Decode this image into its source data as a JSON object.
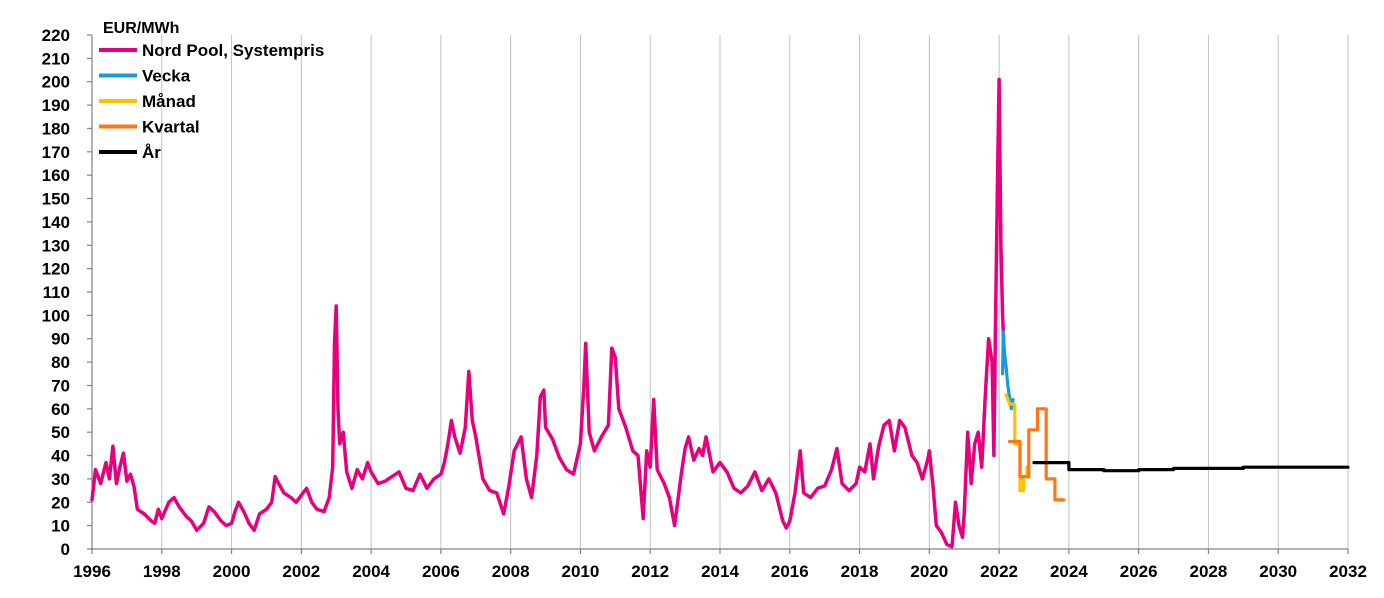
{
  "chart_data": {
    "type": "line",
    "title": "",
    "ylabel": "EUR/MWh",
    "xlabel": "",
    "xlim": [
      1996,
      2032
    ],
    "ylim": [
      0,
      220
    ],
    "x_ticks": [
      "1996",
      "1998",
      "2000",
      "2002",
      "2004",
      "2006",
      "2008",
      "2010",
      "2012",
      "2014",
      "2016",
      "2018",
      "2020",
      "2022",
      "2024",
      "2026",
      "2028",
      "2030",
      "2032"
    ],
    "y_ticks": [
      "0",
      "10",
      "20",
      "30",
      "40",
      "50",
      "60",
      "70",
      "80",
      "90",
      "100",
      "110",
      "120",
      "130",
      "140",
      "150",
      "160",
      "170",
      "180",
      "190",
      "200",
      "210",
      "220"
    ],
    "grid": "vertical",
    "legend_position": "top-left",
    "series": [
      {
        "name": "Nord Pool, Systempris",
        "color": "#e6007e",
        "points": [
          [
            1996.0,
            21
          ],
          [
            1996.1,
            34
          ],
          [
            1996.25,
            28
          ],
          [
            1996.4,
            37
          ],
          [
            1996.5,
            30
          ],
          [
            1996.6,
            44
          ],
          [
            1996.7,
            28
          ],
          [
            1996.8,
            35
          ],
          [
            1996.9,
            41
          ],
          [
            1997.0,
            29
          ],
          [
            1997.1,
            32
          ],
          [
            1997.2,
            27
          ],
          [
            1997.3,
            17
          ],
          [
            1997.5,
            15
          ],
          [
            1997.7,
            12
          ],
          [
            1997.8,
            11
          ],
          [
            1997.9,
            17
          ],
          [
            1998.0,
            13
          ],
          [
            1998.2,
            20
          ],
          [
            1998.35,
            22
          ],
          [
            1998.5,
            18
          ],
          [
            1998.7,
            14
          ],
          [
            1998.85,
            12
          ],
          [
            1999.0,
            8
          ],
          [
            1999.2,
            11
          ],
          [
            1999.35,
            18
          ],
          [
            1999.5,
            16
          ],
          [
            1999.7,
            12
          ],
          [
            1999.85,
            10
          ],
          [
            2000.0,
            11
          ],
          [
            2000.1,
            16
          ],
          [
            2000.2,
            20
          ],
          [
            2000.35,
            16
          ],
          [
            2000.5,
            11
          ],
          [
            2000.65,
            8
          ],
          [
            2000.8,
            15
          ],
          [
            2001.0,
            17
          ],
          [
            2001.15,
            20
          ],
          [
            2001.25,
            31
          ],
          [
            2001.35,
            28
          ],
          [
            2001.5,
            24
          ],
          [
            2001.7,
            22
          ],
          [
            2001.85,
            20
          ],
          [
            2002.0,
            23
          ],
          [
            2002.15,
            26
          ],
          [
            2002.3,
            20
          ],
          [
            2002.45,
            17
          ],
          [
            2002.65,
            16
          ],
          [
            2002.8,
            22
          ],
          [
            2002.9,
            35
          ],
          [
            2002.95,
            88
          ],
          [
            2003.0,
            104
          ],
          [
            2003.05,
            60
          ],
          [
            2003.1,
            45
          ],
          [
            2003.2,
            50
          ],
          [
            2003.3,
            33
          ],
          [
            2003.45,
            26
          ],
          [
            2003.6,
            34
          ],
          [
            2003.75,
            30
          ],
          [
            2003.9,
            37
          ],
          [
            2004.0,
            33
          ],
          [
            2004.2,
            28
          ],
          [
            2004.4,
            29
          ],
          [
            2004.6,
            31
          ],
          [
            2004.8,
            33
          ],
          [
            2005.0,
            26
          ],
          [
            2005.2,
            25
          ],
          [
            2005.4,
            32
          ],
          [
            2005.6,
            26
          ],
          [
            2005.8,
            30
          ],
          [
            2006.0,
            32
          ],
          [
            2006.1,
            37
          ],
          [
            2006.2,
            45
          ],
          [
            2006.3,
            55
          ],
          [
            2006.4,
            48
          ],
          [
            2006.55,
            41
          ],
          [
            2006.7,
            52
          ],
          [
            2006.8,
            76
          ],
          [
            2006.9,
            55
          ],
          [
            2007.0,
            48
          ],
          [
            2007.2,
            30
          ],
          [
            2007.4,
            25
          ],
          [
            2007.6,
            24
          ],
          [
            2007.8,
            15
          ],
          [
            2007.95,
            27
          ],
          [
            2008.1,
            42
          ],
          [
            2008.3,
            48
          ],
          [
            2008.45,
            30
          ],
          [
            2008.6,
            22
          ],
          [
            2008.75,
            40
          ],
          [
            2008.85,
            65
          ],
          [
            2008.95,
            68
          ],
          [
            2009.0,
            52
          ],
          [
            2009.2,
            47
          ],
          [
            2009.4,
            39
          ],
          [
            2009.6,
            34
          ],
          [
            2009.8,
            32
          ],
          [
            2010.0,
            45
          ],
          [
            2010.1,
            70
          ],
          [
            2010.15,
            88
          ],
          [
            2010.25,
            50
          ],
          [
            2010.4,
            42
          ],
          [
            2010.6,
            48
          ],
          [
            2010.8,
            53
          ],
          [
            2010.9,
            86
          ],
          [
            2011.0,
            82
          ],
          [
            2011.1,
            60
          ],
          [
            2011.3,
            52
          ],
          [
            2011.5,
            42
          ],
          [
            2011.65,
            40
          ],
          [
            2011.8,
            13
          ],
          [
            2011.9,
            42
          ],
          [
            2012.0,
            35
          ],
          [
            2012.1,
            64
          ],
          [
            2012.2,
            34
          ],
          [
            2012.4,
            28
          ],
          [
            2012.55,
            22
          ],
          [
            2012.7,
            10
          ],
          [
            2012.9,
            33
          ],
          [
            2013.0,
            43
          ],
          [
            2013.1,
            48
          ],
          [
            2013.25,
            38
          ],
          [
            2013.4,
            43
          ],
          [
            2013.5,
            40
          ],
          [
            2013.6,
            48
          ],
          [
            2013.8,
            33
          ],
          [
            2014.0,
            37
          ],
          [
            2014.2,
            33
          ],
          [
            2014.4,
            26
          ],
          [
            2014.6,
            24
          ],
          [
            2014.8,
            27
          ],
          [
            2015.0,
            33
          ],
          [
            2015.2,
            25
          ],
          [
            2015.4,
            30
          ],
          [
            2015.6,
            24
          ],
          [
            2015.8,
            12
          ],
          [
            2015.9,
            9
          ],
          [
            2016.0,
            12
          ],
          [
            2016.15,
            24
          ],
          [
            2016.3,
            42
          ],
          [
            2016.4,
            24
          ],
          [
            2016.6,
            22
          ],
          [
            2016.8,
            26
          ],
          [
            2017.0,
            27
          ],
          [
            2017.2,
            34
          ],
          [
            2017.35,
            43
          ],
          [
            2017.5,
            28
          ],
          [
            2017.7,
            25
          ],
          [
            2017.9,
            28
          ],
          [
            2018.0,
            35
          ],
          [
            2018.15,
            33
          ],
          [
            2018.3,
            45
          ],
          [
            2018.4,
            30
          ],
          [
            2018.55,
            44
          ],
          [
            2018.7,
            53
          ],
          [
            2018.85,
            55
          ],
          [
            2019.0,
            42
          ],
          [
            2019.15,
            55
          ],
          [
            2019.3,
            52
          ],
          [
            2019.5,
            40
          ],
          [
            2019.65,
            37
          ],
          [
            2019.8,
            30
          ],
          [
            2019.95,
            38
          ],
          [
            2020.0,
            42
          ],
          [
            2020.1,
            28
          ],
          [
            2020.2,
            10
          ],
          [
            2020.35,
            7
          ],
          [
            2020.5,
            2
          ],
          [
            2020.65,
            1
          ],
          [
            2020.75,
            20
          ],
          [
            2020.85,
            10
          ],
          [
            2020.95,
            5
          ],
          [
            2021.0,
            15
          ],
          [
            2021.1,
            50
          ],
          [
            2021.2,
            28
          ],
          [
            2021.3,
            45
          ],
          [
            2021.4,
            50
          ],
          [
            2021.5,
            35
          ],
          [
            2021.6,
            65
          ],
          [
            2021.7,
            90
          ],
          [
            2021.8,
            80
          ],
          [
            2021.85,
            40
          ],
          [
            2021.9,
            100
          ],
          [
            2021.95,
            155
          ],
          [
            2022.0,
            201
          ],
          [
            2022.05,
            130
          ],
          [
            2022.1,
            100
          ],
          [
            2022.15,
            82
          ]
        ]
      },
      {
        "name": "Vecka",
        "color": "#1a9ad6",
        "points": [
          [
            2022.1,
            75
          ],
          [
            2022.12,
            93
          ],
          [
            2022.15,
            85
          ],
          [
            2022.2,
            78
          ],
          [
            2022.25,
            70
          ],
          [
            2022.3,
            65
          ],
          [
            2022.35,
            60
          ],
          [
            2022.4,
            64
          ]
        ]
      },
      {
        "name": "Månad",
        "color": "#ffc000",
        "points": [
          [
            2022.2,
            66
          ],
          [
            2022.3,
            62
          ],
          [
            2022.45,
            62
          ],
          [
            2022.45,
            45
          ],
          [
            2022.6,
            45
          ],
          [
            2022.6,
            25
          ],
          [
            2022.7,
            25
          ],
          [
            2022.7,
            31
          ],
          [
            2022.8,
            31
          ],
          [
            2022.8,
            35
          ]
        ]
      },
      {
        "name": "Kvartal",
        "color": "#ff7518",
        "points": [
          [
            2022.3,
            46
          ],
          [
            2022.6,
            46
          ],
          [
            2022.6,
            31
          ],
          [
            2022.85,
            31
          ],
          [
            2022.85,
            51
          ],
          [
            2023.1,
            51
          ],
          [
            2023.1,
            60
          ],
          [
            2023.35,
            60
          ],
          [
            2023.35,
            30
          ],
          [
            2023.6,
            30
          ],
          [
            2023.6,
            21
          ],
          [
            2023.85,
            21
          ]
        ]
      },
      {
        "name": "År",
        "color": "#000000",
        "points": [
          [
            2023.0,
            37
          ],
          [
            2024.0,
            37
          ],
          [
            2024.0,
            34
          ],
          [
            2025.0,
            34
          ],
          [
            2025.0,
            33.5
          ],
          [
            2026.0,
            33.5
          ],
          [
            2026.0,
            34
          ],
          [
            2027.0,
            34
          ],
          [
            2027.0,
            34.5
          ],
          [
            2029.0,
            34.5
          ],
          [
            2029.0,
            35
          ],
          [
            2032.0,
            35
          ]
        ]
      }
    ]
  }
}
